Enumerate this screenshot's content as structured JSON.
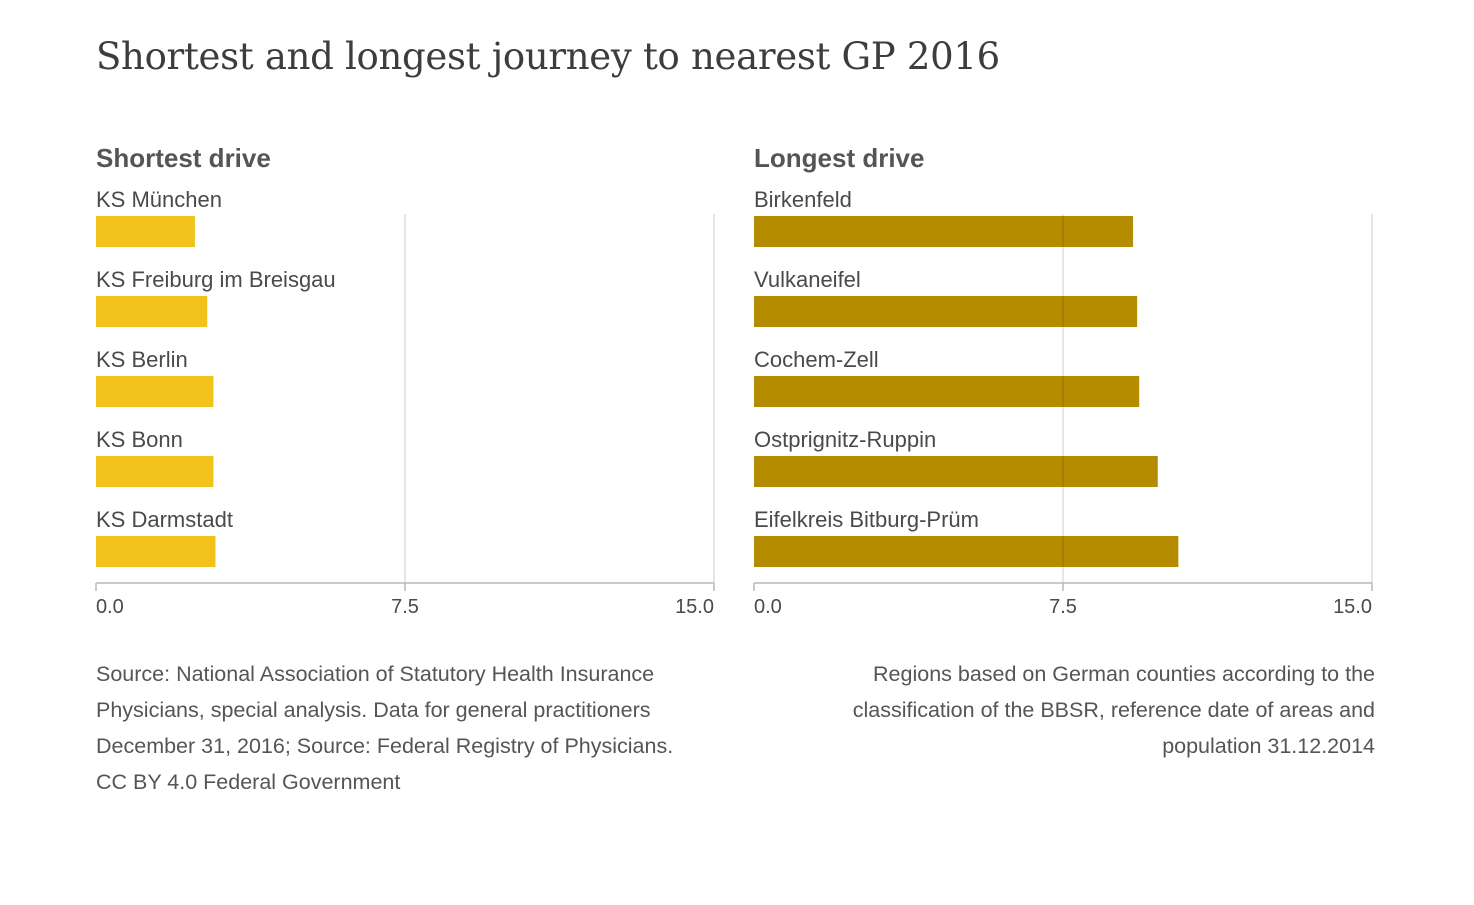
{
  "title": "Shortest and longest journey to nearest GP 2016",
  "source_note": "Source: National Association of Statutory Health Insurance Physicians, special analysis. Data for general practitioners December 31, 2016; Source: Federal Registry of Physicians. CC BY 4.0 Federal Government",
  "regions_note": "Regions based on German counties according to the classification of the BBSR, reference date of areas and population 31.12.2014",
  "colors": {
    "shortest_bar": "#f1c21b",
    "longest_bar": "#b58c00",
    "grid": "#dcdcdc",
    "axis": "#b8b8b8"
  },
  "chart_data": [
    {
      "type": "bar",
      "orientation": "horizontal",
      "title": "Shortest drive",
      "categories": [
        "KS München",
        "KS Freiburg im Breisgau",
        "KS Berlin",
        "KS Bonn",
        "KS Darmstadt"
      ],
      "values": [
        2.4,
        2.7,
        2.85,
        2.85,
        2.9
      ],
      "xlim": [
        0,
        15
      ],
      "x_ticks": [
        0,
        7.5,
        15
      ],
      "x_tick_labels": [
        "0.0",
        "7.5",
        "15.0"
      ],
      "grid": true,
      "color": "#f1c21b"
    },
    {
      "type": "bar",
      "orientation": "horizontal",
      "title": "Longest drive",
      "categories": [
        "Birkenfeld",
        "Vulkaneifel",
        "Cochem-Zell",
        "Ostprignitz-Ruppin",
        "Eifelkreis Bitburg-Prüm"
      ],
      "values": [
        9.2,
        9.3,
        9.35,
        9.8,
        10.3
      ],
      "xlim": [
        0,
        15
      ],
      "x_ticks": [
        0,
        7.5,
        15
      ],
      "x_tick_labels": [
        "0.0",
        "7.5",
        "15.0"
      ],
      "grid": true,
      "color": "#b58c00"
    }
  ]
}
